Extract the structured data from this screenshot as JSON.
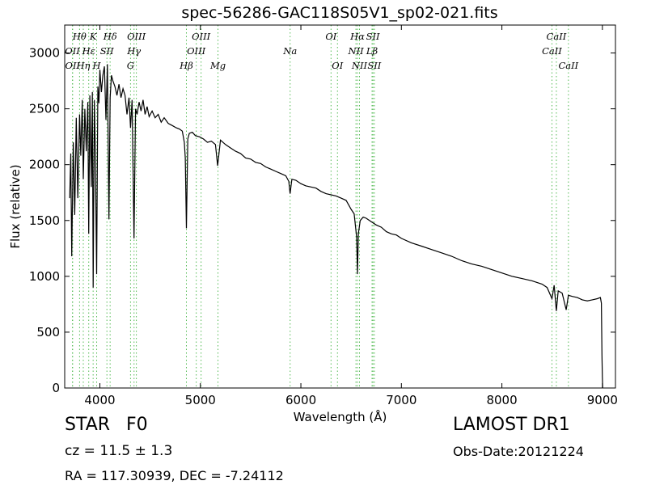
{
  "chart_data": {
    "type": "line",
    "title": "spec-56286-GAC118S05V1_sp02-021.fits",
    "xlabel": "Wavelength (Å)",
    "ylabel": "Flux (relative)",
    "xlim": [
      3650,
      9130
    ],
    "ylim": [
      0,
      3250
    ],
    "xticks": [
      4000,
      5000,
      6000,
      7000,
      8000,
      9000
    ],
    "yticks": [
      0,
      500,
      1000,
      1500,
      2000,
      2500,
      3000
    ],
    "grid": false,
    "series": [
      {
        "color": "#000000",
        "x": [
          3700,
          3710,
          3720,
          3735,
          3750,
          3765,
          3780,
          3798,
          3810,
          3825,
          3835,
          3850,
          3865,
          3880,
          3889,
          3900,
          3915,
          3925,
          3933,
          3945,
          3955,
          3968,
          3980,
          3990,
          4000,
          4015,
          4030,
          4045,
          4060,
          4075,
          4090,
          4102,
          4115,
          4130,
          4150,
          4170,
          4190,
          4210,
          4230,
          4250,
          4270,
          4290,
          4305,
          4320,
          4340,
          4355,
          4370,
          4390,
          4410,
          4430,
          4450,
          4470,
          4490,
          4520,
          4550,
          4580,
          4610,
          4640,
          4680,
          4720,
          4760,
          4790,
          4820,
          4840,
          4850,
          4861,
          4875,
          4890,
          4920,
          4950,
          4990,
          5030,
          5070,
          5110,
          5150,
          5172,
          5200,
          5250,
          5300,
          5350,
          5400,
          5450,
          5500,
          5550,
          5600,
          5650,
          5700,
          5750,
          5800,
          5850,
          5880,
          5893,
          5910,
          5950,
          6000,
          6050,
          6100,
          6150,
          6200,
          6250,
          6300,
          6350,
          6400,
          6450,
          6500,
          6530,
          6555,
          6563,
          6572,
          6590,
          6620,
          6650,
          6700,
          6750,
          6800,
          6850,
          6900,
          6950,
          7000,
          7100,
          7200,
          7300,
          7400,
          7500,
          7600,
          7700,
          7800,
          7900,
          8000,
          8100,
          8200,
          8300,
          8400,
          8450,
          8498,
          8520,
          8542,
          8560,
          8600,
          8640,
          8662,
          8700,
          8750,
          8800,
          8850,
          8900,
          8950,
          8980,
          8990,
          8996,
          9000,
          9003
        ],
        "y": [
          1700,
          2100,
          1180,
          2200,
          1550,
          2420,
          1700,
          2450,
          2080,
          2580,
          1870,
          2500,
          2120,
          2560,
          1380,
          2620,
          1800,
          2650,
          900,
          2580,
          2100,
          1020,
          2700,
          2550,
          2850,
          2650,
          2800,
          2880,
          2400,
          2900,
          1510,
          2600,
          2800,
          2750,
          2700,
          2620,
          2720,
          2600,
          2680,
          2620,
          2450,
          2600,
          2330,
          2580,
          1340,
          2500,
          2450,
          2560,
          2480,
          2580,
          2450,
          2520,
          2430,
          2480,
          2420,
          2450,
          2380,
          2420,
          2370,
          2350,
          2330,
          2320,
          2300,
          2200,
          2060,
          1430,
          2230,
          2280,
          2290,
          2260,
          2250,
          2230,
          2200,
          2210,
          2180,
          1990,
          2220,
          2180,
          2150,
          2120,
          2100,
          2060,
          2050,
          2020,
          2010,
          1980,
          1960,
          1940,
          1920,
          1900,
          1850,
          1740,
          1870,
          1860,
          1830,
          1810,
          1800,
          1790,
          1760,
          1740,
          1730,
          1720,
          1700,
          1680,
          1600,
          1560,
          1350,
          1020,
          1380,
          1500,
          1530,
          1520,
          1490,
          1460,
          1440,
          1400,
          1380,
          1370,
          1340,
          1300,
          1270,
          1240,
          1210,
          1180,
          1140,
          1110,
          1090,
          1060,
          1030,
          1000,
          980,
          960,
          930,
          900,
          800,
          920,
          690,
          870,
          850,
          700,
          830,
          820,
          810,
          790,
          780,
          790,
          800,
          810,
          760,
          300,
          100,
          0
        ]
      }
    ],
    "annotations": [
      {
        "label": "OII",
        "x": 3727,
        "row": 2
      },
      {
        "label": "OII",
        "x": 3729,
        "row": 3
      },
      {
        "label": "Hθ",
        "x": 3798,
        "row": 1
      },
      {
        "label": "Hη",
        "x": 3835,
        "row": 3
      },
      {
        "label": "Hε",
        "x": 3889,
        "row": 2
      },
      {
        "label": "K",
        "x": 3933,
        "row": 1
      },
      {
        "label": "H",
        "x": 3968,
        "row": 3
      },
      {
        "label": "SII",
        "x": 4070,
        "row": 2
      },
      {
        "label": "Hδ",
        "x": 4102,
        "row": 1
      },
      {
        "label": "G",
        "x": 4305,
        "row": 3
      },
      {
        "label": "Hγ",
        "x": 4340,
        "row": 2
      },
      {
        "label": "OIII",
        "x": 4363,
        "row": 1
      },
      {
        "label": "Hβ",
        "x": 4861,
        "row": 3
      },
      {
        "label": "OIII",
        "x": 4959,
        "row": 2
      },
      {
        "label": "OIII",
        "x": 5007,
        "row": 1
      },
      {
        "label": "Mg",
        "x": 5175,
        "row": 3
      },
      {
        "label": "Na",
        "x": 5893,
        "row": 2
      },
      {
        "label": "OI",
        "x": 6300,
        "row": 1
      },
      {
        "label": "OI",
        "x": 6364,
        "row": 3
      },
      {
        "label": "NII",
        "x": 6548,
        "row": 2
      },
      {
        "label": "Hα",
        "x": 6563,
        "row": 1
      },
      {
        "label": "NII",
        "x": 6583,
        "row": 3
      },
      {
        "label": "Lβ",
        "x": 6708,
        "row": 2
      },
      {
        "label": "SII",
        "x": 6717,
        "row": 1
      },
      {
        "label": "SII",
        "x": 6731,
        "row": 3
      },
      {
        "label": "CaII",
        "x": 8498,
        "row": 2
      },
      {
        "label": "CaII",
        "x": 8542,
        "row": 1
      },
      {
        "label": "CaII",
        "x": 8662,
        "row": 3
      }
    ]
  },
  "info": {
    "object_class": "STAR",
    "subclass": "F0",
    "survey": "LAMOST DR1",
    "redshift": "cz = 11.5  ± 1.3",
    "obs_date": "Obs-Date:20121224",
    "coords": "RA = 117.30939, DEC = -7.24112"
  }
}
